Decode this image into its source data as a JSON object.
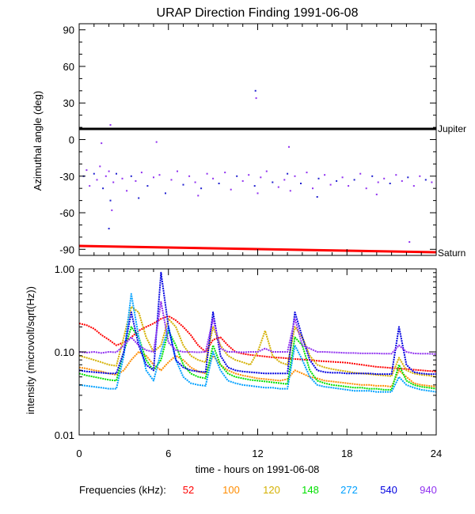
{
  "chart_data": [
    {
      "type": "scatter",
      "title": "URAP Direction Finding  1991-06-08",
      "ylabel": "Azimuthal angle (deg)",
      "xlim": [
        0,
        24
      ],
      "ylim": [
        -95,
        95
      ],
      "y_ticks": [
        "90",
        "60",
        "30",
        "0",
        "-30",
        "-60",
        "-90"
      ],
      "grid": false,
      "reference_lines": [
        {
          "label": "Jupiter",
          "y": 11,
          "color": "#000000"
        },
        {
          "label": "Saturn",
          "y_start": -86.5,
          "y_end": -91.5,
          "color": "#ff0000"
        }
      ],
      "points": {
        "x": [
          0.3,
          0.5,
          0.7,
          1.0,
          1.2,
          1.4,
          1.6,
          1.8,
          2.0,
          2.1,
          2.2,
          2.3,
          2.5,
          2.9,
          3.2,
          3.5,
          3.8,
          4.2,
          4.6,
          5.0,
          5.4,
          5.8,
          6.2,
          6.6,
          7.0,
          7.4,
          7.8,
          8.2,
          8.6,
          9.0,
          9.4,
          9.8,
          10.2,
          10.6,
          11.0,
          11.4,
          11.8,
          12.2,
          12.6,
          13.0,
          13.4,
          13.8,
          14.0,
          14.2,
          14.5,
          14.9,
          15.3,
          15.7,
          16.1,
          16.5,
          16.9,
          17.3,
          17.7,
          18.1,
          18.5,
          18.9,
          19.3,
          19.7,
          20.1,
          20.5,
          20.9,
          21.3,
          21.7,
          22.1,
          22.5,
          22.9,
          23.3,
          23.7,
          1.5,
          2.0,
          2.1,
          5.2,
          11.85,
          11.9,
          14.1,
          4.0,
          8.0,
          12.0,
          16.0,
          20.0,
          22.2
        ],
        "y": [
          -30,
          -25,
          -38,
          -28,
          -33,
          -22,
          -40,
          -30,
          -26,
          -50,
          -58,
          -35,
          -28,
          -32,
          -42,
          -30,
          -34,
          -27,
          -38,
          -31,
          -29,
          -44,
          -33,
          -26,
          -37,
          -30,
          -35,
          -40,
          -28,
          -32,
          -36,
          -27,
          -41,
          -30,
          -34,
          -29,
          -38,
          -31,
          -26,
          -35,
          -39,
          -33,
          -28,
          -42,
          -30,
          -36,
          -27,
          -40,
          -32,
          -29,
          -37,
          -34,
          -31,
          -38,
          -33,
          -28,
          -40,
          -30,
          -35,
          -32,
          -36,
          -29,
          -34,
          -31,
          -38,
          -30,
          -33,
          -35,
          -3,
          -73,
          12,
          -2,
          40,
          34,
          -6,
          -48,
          -46,
          -44,
          -47,
          -45,
          -84
        ]
      }
    },
    {
      "type": "line",
      "title": "",
      "xlabel": "time - hours on 1991-06-08",
      "ylabel": "intensity (microvolt/sqrt(Hz))",
      "xlim": [
        0,
        24
      ],
      "ylim": [
        0.01,
        1.0
      ],
      "yscale": "log",
      "x_ticks": [
        "0",
        "6",
        "12",
        "18",
        "24"
      ],
      "y_ticks": [
        "1.00",
        "0.10",
        "0.01"
      ],
      "grid": false,
      "legend_title": "Frequencies (kHz):",
      "legend_placement": "bottom",
      "x": [
        0,
        0.5,
        1,
        1.5,
        2,
        2.5,
        3,
        3.5,
        4,
        4.5,
        5,
        5.5,
        6,
        6.5,
        7,
        7.5,
        8,
        8.5,
        9,
        9.5,
        10,
        10.5,
        11,
        11.5,
        12,
        12.5,
        13,
        13.5,
        14,
        14.5,
        15,
        15.5,
        16,
        16.5,
        17,
        17.5,
        18,
        18.5,
        19,
        19.5,
        20,
        20.5,
        21,
        21.5,
        22,
        22.5,
        23,
        23.5,
        24
      ],
      "series": [
        {
          "name": "52",
          "color": "#ff0000",
          "values": [
            0.22,
            0.21,
            0.19,
            0.16,
            0.14,
            0.12,
            0.13,
            0.15,
            0.18,
            0.2,
            0.22,
            0.25,
            0.27,
            0.24,
            0.2,
            0.16,
            0.12,
            0.1,
            0.14,
            0.15,
            0.12,
            0.1,
            0.095,
            0.092,
            0.09,
            0.088,
            0.086,
            0.085,
            0.084,
            0.082,
            0.081,
            0.08,
            0.078,
            0.077,
            0.076,
            0.075,
            0.074,
            0.072,
            0.07,
            0.068,
            0.066,
            0.065,
            0.064,
            0.063,
            0.062,
            0.061,
            0.06,
            0.059,
            0.058
          ]
        },
        {
          "name": "100",
          "color": "#ff8c00",
          "values": [
            0.065,
            0.063,
            0.06,
            0.058,
            0.055,
            0.053,
            0.06,
            0.08,
            0.1,
            0.09,
            0.07,
            0.06,
            0.075,
            0.09,
            0.08,
            0.065,
            0.058,
            0.055,
            0.09,
            0.07,
            0.06,
            0.055,
            0.052,
            0.05,
            0.048,
            0.047,
            0.046,
            0.045,
            0.047,
            0.06,
            0.055,
            0.05,
            0.048,
            0.045,
            0.044,
            0.043,
            0.042,
            0.041,
            0.04,
            0.04,
            0.039,
            0.039,
            0.038,
            0.06,
            0.05,
            0.042,
            0.04,
            0.039,
            0.038
          ]
        },
        {
          "name": "120",
          "color": "#d4b000",
          "values": [
            0.09,
            0.085,
            0.08,
            0.075,
            0.07,
            0.068,
            0.15,
            0.35,
            0.3,
            0.15,
            0.1,
            0.12,
            0.25,
            0.2,
            0.12,
            0.09,
            0.08,
            0.075,
            0.2,
            0.12,
            0.09,
            0.08,
            0.075,
            0.07,
            0.1,
            0.18,
            0.09,
            0.075,
            0.07,
            0.2,
            0.15,
            0.09,
            0.07,
            0.065,
            0.062,
            0.06,
            0.058,
            0.056,
            0.055,
            0.054,
            0.053,
            0.052,
            0.051,
            0.085,
            0.06,
            0.055,
            0.053,
            0.052,
            0.05
          ]
        },
        {
          "name": "148",
          "color": "#00e000",
          "values": [
            0.055,
            0.052,
            0.05,
            0.048,
            0.046,
            0.045,
            0.1,
            0.2,
            0.15,
            0.08,
            0.06,
            0.08,
            0.18,
            0.12,
            0.07,
            0.055,
            0.05,
            0.048,
            0.12,
            0.07,
            0.055,
            0.05,
            0.048,
            0.046,
            0.045,
            0.044,
            0.043,
            0.042,
            0.041,
            0.15,
            0.12,
            0.06,
            0.045,
            0.042,
            0.04,
            0.039,
            0.038,
            0.037,
            0.037,
            0.036,
            0.036,
            0.035,
            0.035,
            0.07,
            0.045,
            0.04,
            0.038,
            0.037,
            0.036
          ]
        },
        {
          "name": "272",
          "color": "#00a0ff",
          "values": [
            0.04,
            0.039,
            0.038,
            0.037,
            0.036,
            0.036,
            0.09,
            0.5,
            0.15,
            0.06,
            0.045,
            0.1,
            0.2,
            0.08,
            0.05,
            0.042,
            0.04,
            0.039,
            0.1,
            0.06,
            0.045,
            0.042,
            0.04,
            0.039,
            0.038,
            0.037,
            0.037,
            0.036,
            0.036,
            0.12,
            0.08,
            0.05,
            0.04,
            0.038,
            0.037,
            0.036,
            0.035,
            0.034,
            0.034,
            0.034,
            0.033,
            0.033,
            0.033,
            0.05,
            0.04,
            0.037,
            0.035,
            0.034,
            0.033
          ]
        },
        {
          "name": "540",
          "color": "#0000e0",
          "values": [
            0.06,
            0.058,
            0.057,
            0.056,
            0.055,
            0.055,
            0.1,
            0.3,
            0.12,
            0.07,
            0.06,
            0.9,
            0.2,
            0.08,
            0.065,
            0.06,
            0.058,
            0.057,
            0.3,
            0.09,
            0.065,
            0.06,
            0.058,
            0.057,
            0.056,
            0.055,
            0.055,
            0.055,
            0.055,
            0.3,
            0.15,
            0.08,
            0.06,
            0.057,
            0.056,
            0.056,
            0.055,
            0.055,
            0.055,
            0.055,
            0.054,
            0.054,
            0.054,
            0.2,
            0.07,
            0.057,
            0.055,
            0.054,
            0.054
          ]
        },
        {
          "name": "940",
          "color": "#9030f0",
          "values": [
            0.1,
            0.098,
            0.1,
            0.097,
            0.1,
            0.099,
            0.12,
            0.15,
            0.12,
            0.105,
            0.1,
            0.4,
            0.13,
            0.105,
            0.1,
            0.1,
            0.099,
            0.1,
            0.25,
            0.11,
            0.1,
            0.1,
            0.099,
            0.1,
            0.1,
            0.11,
            0.1,
            0.1,
            0.1,
            0.25,
            0.12,
            0.11,
            0.1,
            0.1,
            0.099,
            0.098,
            0.097,
            0.097,
            0.096,
            0.096,
            0.096,
            0.095,
            0.095,
            0.12,
            0.1,
            0.096,
            0.095,
            0.095,
            0.094
          ]
        }
      ]
    }
  ],
  "labels": {
    "title": "URAP Direction Finding  1991-06-08",
    "ylabel_top": "Azimuthal angle (deg)",
    "ylabel_bottom": "intensity (microvolt/sqrt(Hz))",
    "xlabel": "time - hours on 1991-06-08",
    "legend_title": "Frequencies (kHz):",
    "jupiter": "Jupiter",
    "saturn": "Saturn"
  }
}
